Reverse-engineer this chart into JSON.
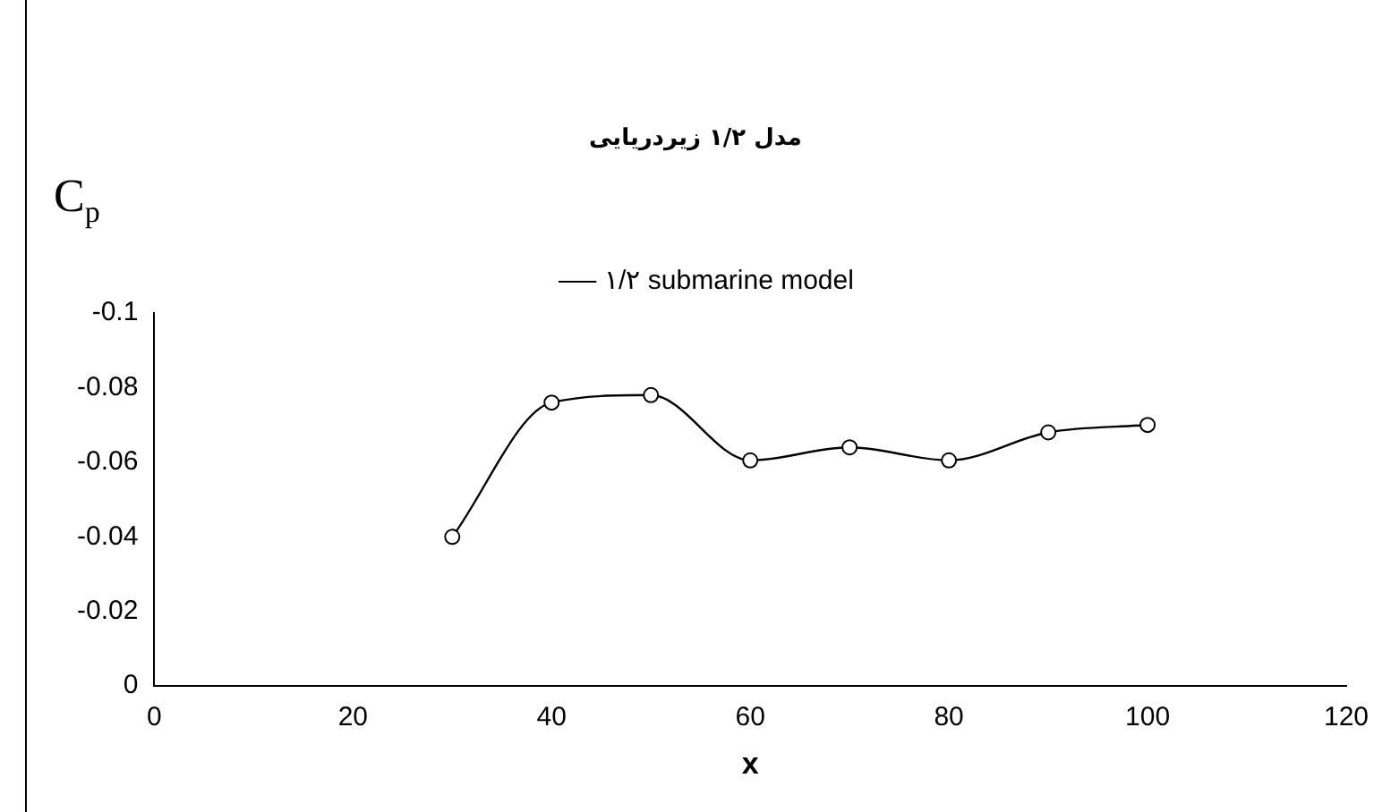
{
  "chart_data": {
    "type": "line",
    "title": "مدل ۱/۲ زیردریایی",
    "xlabel": "x",
    "ylabel": "C$_{p}$",
    "x": [
      30,
      40,
      50,
      60,
      70,
      80,
      90,
      100
    ],
    "series": [
      {
        "name": "۱/۲ submarine model",
        "color": "#000000",
        "values": [
          -0.04,
          -0.076,
          -0.078,
          -0.0605,
          -0.064,
          -0.0605,
          -0.068,
          -0.07
        ]
      }
    ],
    "xlim": [
      0,
      120
    ],
    "xticks": [
      0,
      20,
      40,
      60,
      80,
      100,
      120
    ],
    "ylim": [
      0,
      -0.1
    ],
    "yticks": [
      0,
      -0.02,
      -0.04,
      -0.06,
      -0.08,
      -0.1
    ],
    "grid": false,
    "legend": "top",
    "marker": "circle",
    "line_style": "solid"
  }
}
